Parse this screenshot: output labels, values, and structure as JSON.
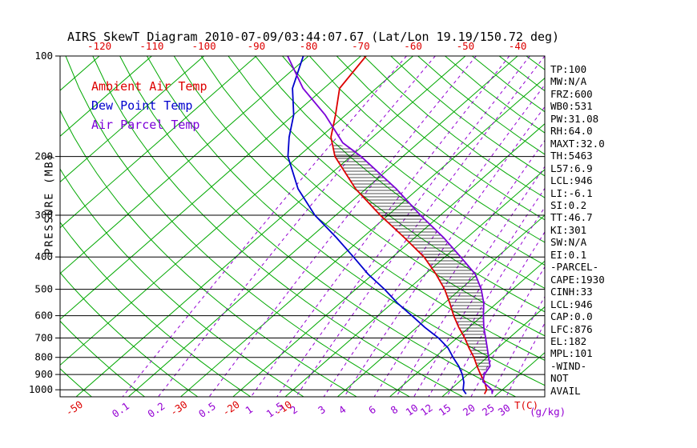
{
  "title": "AIRS SkewT Diagram 2010-07-09/03:44:07.67 (Lat/Lon 19.19/150.72 deg)",
  "axes": {
    "pressure_title": "PRESSURE (MB)",
    "pressure_labels": [
      100,
      200,
      300,
      400,
      500,
      600,
      700,
      800,
      900,
      1000
    ],
    "top_temp_labels": [
      -120,
      -110,
      -100,
      -90,
      -80,
      -70,
      -60,
      -50,
      -40
    ],
    "bottom_temp_labels": [
      -50,
      -30,
      -20,
      -10
    ],
    "mixing_ratio_labels": [
      0.1,
      0.2,
      0.5,
      1,
      1.5,
      2,
      3,
      4,
      6,
      8,
      10,
      12,
      15,
      20,
      25,
      30
    ],
    "temp_unit_label": "T(C)",
    "mixing_unit_label": "(g/kg)"
  },
  "legend": {
    "items": [
      {
        "label": "Ambient Air Temp",
        "color": "#dd0000"
      },
      {
        "label": "Dew Point Temp",
        "color": "#0000cd"
      },
      {
        "label": "Air Parcel Temp",
        "color": "#7b00d8"
      }
    ]
  },
  "stats": {
    "lines": [
      "TP:100",
      "MW:N/A",
      "FRZ:600",
      "WB0:531",
      "PW:31.08",
      "RH:64.0",
      "MAXT:32.0",
      "TH:5463",
      "L57:6.9",
      "LCL:946",
      "LI:-6.1",
      "SI:0.2",
      "TT:46.7",
      "KI:301",
      "SW:N/A",
      "EI:0.1",
      "-PARCEL-",
      "CAPE:1930",
      "CINH:33",
      "LCL:946",
      "CAP:0.0",
      "LFC:876",
      "EL:182",
      "MPL:101",
      "-WIND-",
      "NOT",
      "AVAIL"
    ]
  },
  "colors": {
    "isotherm": "#00a800",
    "dry_adiabat": "#00a800",
    "mixing_ratio": "#9400d3",
    "pressure_line": "#000000",
    "temp_label": "#dd0000",
    "axis_text": "#000000"
  },
  "chart_data": {
    "type": "skewt-log-p",
    "title": "AIRS SkewT Diagram 2010-07-09/03:44:07.67 (Lat/Lon 19.19/150.72 deg)",
    "pressure_axis_range_mb": [
      100,
      1050
    ],
    "pressure_lines_mb": [
      100,
      200,
      300,
      400,
      500,
      600,
      700,
      800,
      900,
      1000
    ],
    "isotherms_c": {
      "min": -160,
      "max": 40,
      "step": 10
    },
    "dry_adiabats_k": {
      "min": 213,
      "max": 453,
      "step": 10
    },
    "mixing_ratio_lines_gkg": [
      0.1,
      0.2,
      0.5,
      1,
      1.5,
      2,
      3,
      4,
      6,
      8,
      10,
      12,
      15,
      20,
      25,
      30
    ],
    "cape_hatch_p_range_mb": [
      182,
      876
    ],
    "series": [
      {
        "name": "Ambient Air Temp",
        "color": "#dd0000",
        "points_p_t": [
          [
            100,
            -69
          ],
          [
            125,
            -67
          ],
          [
            150,
            -62
          ],
          [
            175,
            -58
          ],
          [
            200,
            -53
          ],
          [
            250,
            -42
          ],
          [
            300,
            -31.5
          ],
          [
            350,
            -22
          ],
          [
            400,
            -14
          ],
          [
            450,
            -8
          ],
          [
            500,
            -3
          ],
          [
            550,
            1
          ],
          [
            600,
            4.5
          ],
          [
            650,
            8
          ],
          [
            700,
            11.5
          ],
          [
            750,
            14.5
          ],
          [
            800,
            17.5
          ],
          [
            850,
            20
          ],
          [
            900,
            22.5
          ],
          [
            950,
            25
          ],
          [
            1000,
            27
          ],
          [
            1030,
            27.5
          ]
        ]
      },
      {
        "name": "Dew Point Temp",
        "color": "#0000cd",
        "points_p_t": [
          [
            100,
            -81
          ],
          [
            125,
            -76
          ],
          [
            150,
            -70
          ],
          [
            175,
            -66
          ],
          [
            200,
            -62
          ],
          [
            250,
            -53
          ],
          [
            300,
            -44
          ],
          [
            350,
            -35
          ],
          [
            400,
            -27.5
          ],
          [
            450,
            -21
          ],
          [
            500,
            -14.5
          ],
          [
            550,
            -9
          ],
          [
            600,
            -3.5
          ],
          [
            650,
            1.5
          ],
          [
            700,
            6.5
          ],
          [
            750,
            10.5
          ],
          [
            800,
            13.5
          ],
          [
            850,
            16.5
          ],
          [
            900,
            19
          ],
          [
            950,
            21
          ],
          [
            1000,
            22.5
          ],
          [
            1030,
            24
          ]
        ]
      },
      {
        "name": "Air Parcel Temp",
        "color": "#7b00d8",
        "points_p_t": [
          [
            100,
            -84
          ],
          [
            125,
            -74
          ],
          [
            150,
            -64
          ],
          [
            182,
            -54.5
          ],
          [
            200,
            -48
          ],
          [
            250,
            -34.2
          ],
          [
            300,
            -23.8
          ],
          [
            350,
            -14.5
          ],
          [
            400,
            -7
          ],
          [
            450,
            -0.5
          ],
          [
            500,
            4
          ],
          [
            550,
            7.5
          ],
          [
            600,
            10.2
          ],
          [
            650,
            12.8
          ],
          [
            700,
            15.5
          ],
          [
            750,
            18
          ],
          [
            800,
            20.3
          ],
          [
            850,
            22.5
          ],
          [
            900,
            23.2
          ],
          [
            946,
            24.5
          ],
          [
            1000,
            28
          ],
          [
            1030,
            29
          ]
        ]
      }
    ]
  }
}
